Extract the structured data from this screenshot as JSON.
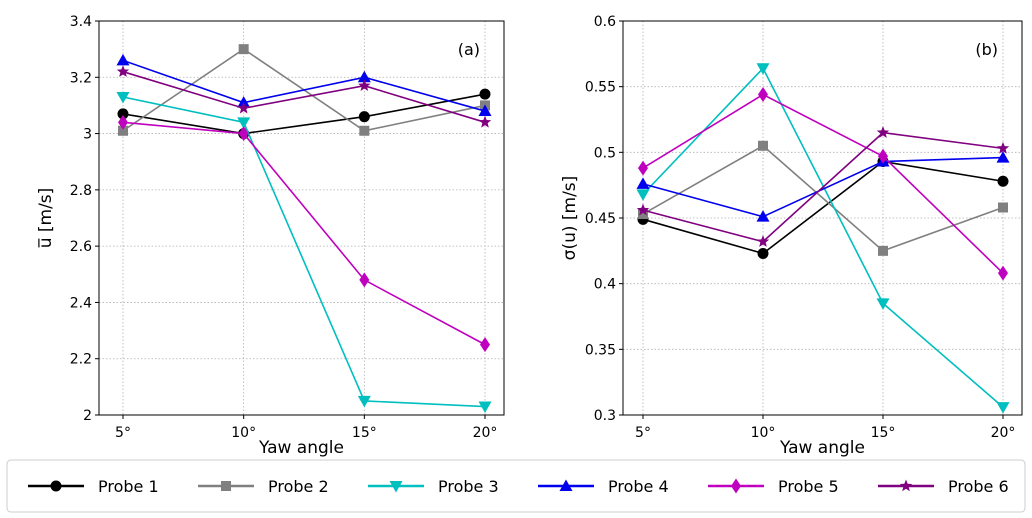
{
  "chart_data": [
    {
      "type": "line",
      "panel_label": "(a)",
      "xlabel": "Yaw angle",
      "ylabel": "u̅ [m/s]",
      "categories": [
        "5°",
        "10°",
        "15°",
        "20°"
      ],
      "ylim": [
        2.0,
        3.4
      ],
      "yticks": [
        2,
        2.2,
        2.4,
        2.6,
        2.8,
        3,
        3.2,
        3.4
      ],
      "ytick_labels": [
        "2",
        "2.2",
        "2.4",
        "2.6",
        "2.8",
        "3",
        "3.2",
        "3.4"
      ],
      "grid": true,
      "series": [
        {
          "name": "Probe 1",
          "values": [
            3.07,
            3.0,
            3.06,
            3.14
          ]
        },
        {
          "name": "Probe 2",
          "values": [
            3.01,
            3.3,
            3.01,
            3.1
          ]
        },
        {
          "name": "Probe 3",
          "values": [
            3.13,
            3.04,
            2.05,
            2.03
          ]
        },
        {
          "name": "Probe 4",
          "values": [
            3.26,
            3.11,
            3.2,
            3.08
          ]
        },
        {
          "name": "Probe 5",
          "values": [
            3.04,
            3.0,
            2.48,
            2.25
          ]
        },
        {
          "name": "Probe 6",
          "values": [
            3.22,
            3.09,
            3.17,
            3.04
          ]
        }
      ]
    },
    {
      "type": "line",
      "panel_label": "(b)",
      "xlabel": "Yaw angle",
      "ylabel": "σ(u) [m/s]",
      "categories": [
        "5°",
        "10°",
        "15°",
        "20°"
      ],
      "ylim": [
        0.3,
        0.6
      ],
      "yticks": [
        0.3,
        0.35,
        0.4,
        0.45,
        0.5,
        0.55,
        0.6
      ],
      "ytick_labels": [
        "0.3",
        "0.35",
        "0.4",
        "0.45",
        "0.5",
        "0.55",
        "0.6"
      ],
      "grid": true,
      "series": [
        {
          "name": "Probe 1",
          "values": [
            0.449,
            0.423,
            0.493,
            0.478
          ]
        },
        {
          "name": "Probe 2",
          "values": [
            0.453,
            0.505,
            0.425,
            0.458
          ]
        },
        {
          "name": "Probe 3",
          "values": [
            0.468,
            0.564,
            0.385,
            0.306
          ]
        },
        {
          "name": "Probe 4",
          "values": [
            0.476,
            0.451,
            0.493,
            0.496
          ]
        },
        {
          "name": "Probe 5",
          "values": [
            0.488,
            0.544,
            0.497,
            0.408
          ]
        },
        {
          "name": "Probe 6",
          "values": [
            0.456,
            0.432,
            0.515,
            0.503
          ]
        }
      ]
    }
  ],
  "legend": {
    "placement": "bottom",
    "entries": [
      {
        "label": "Probe 1",
        "color": "#000000",
        "marker": "circle"
      },
      {
        "label": "Probe 2",
        "color": "#808080",
        "marker": "square"
      },
      {
        "label": "Probe 3",
        "color": "#00bfbf",
        "marker": "triangle-down"
      },
      {
        "label": "Probe 4",
        "color": "#0000ee",
        "marker": "triangle-up"
      },
      {
        "label": "Probe 5",
        "color": "#bf00bf",
        "marker": "diamond"
      },
      {
        "label": "Probe 6",
        "color": "#800080",
        "marker": "star"
      }
    ]
  }
}
